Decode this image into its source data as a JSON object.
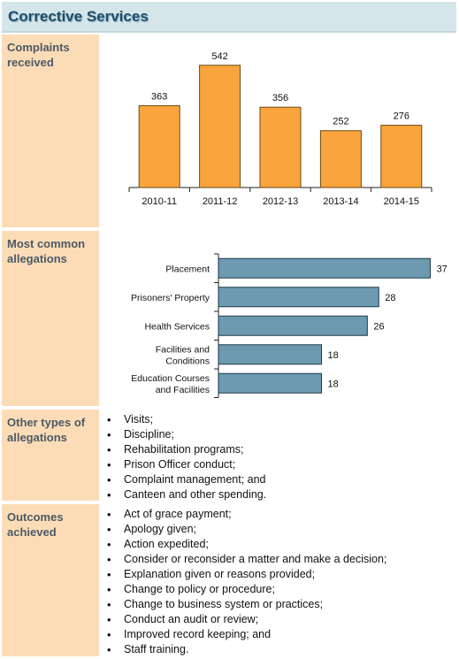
{
  "header": {
    "title": "Corrective Services"
  },
  "sections": {
    "complaints_label": "Complaints received",
    "allegations_label": "Most common allegations",
    "other_label": "Other types of allegations",
    "outcomes_label": "Outcomes achieved"
  },
  "chart_data": [
    {
      "type": "bar",
      "categories": [
        "2010-11",
        "2011-12",
        "2012-13",
        "2013-14",
        "2014-15"
      ],
      "values": [
        363,
        542,
        356,
        252,
        276
      ],
      "title": "",
      "xlabel": "",
      "ylabel": "",
      "ylim": [
        0,
        600
      ],
      "grid": false,
      "bar_color": "#f9a43d",
      "bar_stroke": "#6b4a12"
    },
    {
      "type": "bar",
      "orientation": "horizontal",
      "categories": [
        "Placement",
        "Prisoners' Property",
        "Health Services",
        "Facilities and Conditions",
        "Education Courses and Facilities"
      ],
      "category_lines": [
        [
          "Placement"
        ],
        [
          "Prisoners' Property"
        ],
        [
          "Health Services"
        ],
        [
          "Facilities and",
          "Conditions"
        ],
        [
          "Education Courses",
          "and Facilities"
        ]
      ],
      "values": [
        37,
        28,
        26,
        18,
        18
      ],
      "title": "",
      "xlabel": "",
      "ylabel": "",
      "xlim": [
        0,
        40
      ],
      "grid": false,
      "bar_color": "#6d9ab1",
      "bar_stroke": "#1e3a4a"
    }
  ],
  "other_allegations": [
    "Visits;",
    "Discipline;",
    "Rehabilitation programs;",
    "Prison Officer conduct;",
    "Complaint management; and",
    "Canteen and other spending."
  ],
  "outcomes": [
    "Act of grace payment;",
    "Apology given;",
    "Action expedited;",
    "Consider or reconsider a matter and make a decision;",
    "Explanation given or reasons provided;",
    "Change to policy or procedure;",
    "Change to business system or practices;",
    "Conduct an audit or review;",
    "Improved record keeping; and",
    "Staff training."
  ]
}
